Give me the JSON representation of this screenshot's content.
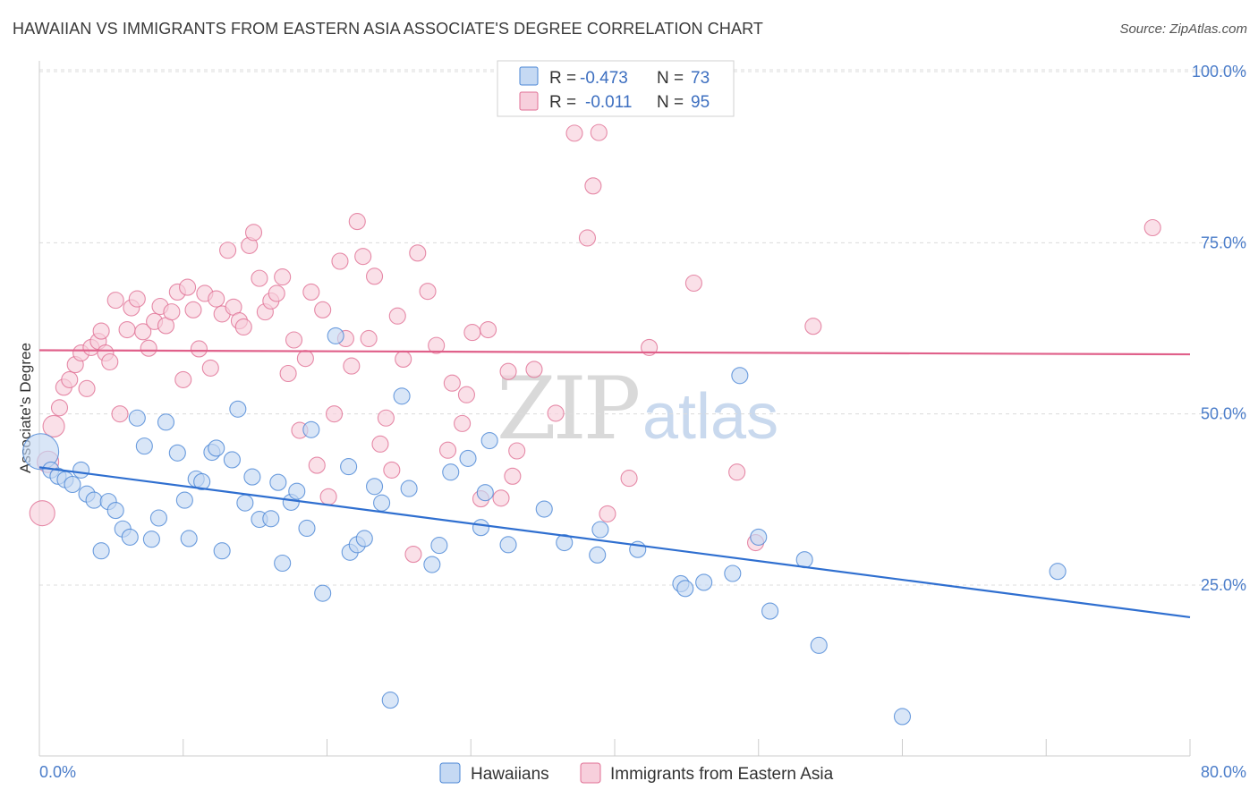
{
  "title": "HAWAIIAN VS IMMIGRANTS FROM EASTERN ASIA ASSOCIATE'S DEGREE CORRELATION CHART",
  "source": "Source: ZipAtlas.com",
  "watermark": {
    "zip": "ZIP",
    "atlas": "atlas"
  },
  "colors": {
    "blue": "#4a86d6",
    "blue_fill": "#c5d9f3",
    "pink": "#e06f94",
    "pink_fill": "#f7cfdc",
    "blue_line": "#2f6fd0",
    "pink_line": "#e0608a",
    "grid": "#dcdcdc",
    "tick_text": "#4a7cc9"
  },
  "legend": {
    "rows": [
      {
        "r_label": "R =",
        "r_value": "-0.473",
        "n_label": "N =",
        "n_value": "73"
      },
      {
        "r_label": "R =",
        "r_value": "-0.011",
        "n_label": "N =",
        "n_value": "95"
      }
    ]
  },
  "bottom_legend": [
    "Hawaiians",
    "Immigrants from Eastern Asia"
  ],
  "chart_data": {
    "type": "scatter",
    "xlabel": "",
    "ylabel": "Associate's Degree",
    "xlim": [
      0,
      80
    ],
    "ylim": [
      0,
      105
    ],
    "x_tick_labels": [
      "0.0%",
      "80.0%"
    ],
    "y_ticks": [
      25,
      50,
      75,
      100
    ],
    "y_tick_labels": [
      "25.0%",
      "50.0%",
      "75.0%",
      "100.0%"
    ],
    "grid": true,
    "legend_position": "top-center",
    "series": [
      {
        "name": "Hawaiians",
        "color": "#4a86d6",
        "trend": {
          "x0": 0,
          "y0": 42.2,
          "x1": 80,
          "y1": 20.3
        },
        "points": [
          [
            0.1,
            44.5
          ],
          [
            0.8,
            41.8
          ],
          [
            1.3,
            40.9
          ],
          [
            1.8,
            40.4
          ],
          [
            2.3,
            39.7
          ],
          [
            2.9,
            41.8
          ],
          [
            3.3,
            38.3
          ],
          [
            3.8,
            37.4
          ],
          [
            4.3,
            30.0
          ],
          [
            4.8,
            37.2
          ],
          [
            5.3,
            35.9
          ],
          [
            5.8,
            33.2
          ],
          [
            6.3,
            32.0
          ],
          [
            6.8,
            49.4
          ],
          [
            7.3,
            45.3
          ],
          [
            7.8,
            31.7
          ],
          [
            8.3,
            34.8
          ],
          [
            8.8,
            48.8
          ],
          [
            9.6,
            44.3
          ],
          [
            10.1,
            37.4
          ],
          [
            10.4,
            31.8
          ],
          [
            10.9,
            40.5
          ],
          [
            11.3,
            40.1
          ],
          [
            12.0,
            44.4
          ],
          [
            12.3,
            45.0
          ],
          [
            12.7,
            30.0
          ],
          [
            13.4,
            43.3
          ],
          [
            13.8,
            50.7
          ],
          [
            14.3,
            37.0
          ],
          [
            14.8,
            40.8
          ],
          [
            15.3,
            34.6
          ],
          [
            16.1,
            34.7
          ],
          [
            16.6,
            40.0
          ],
          [
            16.9,
            28.2
          ],
          [
            17.5,
            37.1
          ],
          [
            17.9,
            38.7
          ],
          [
            18.6,
            33.3
          ],
          [
            18.9,
            47.7
          ],
          [
            19.7,
            23.8
          ],
          [
            20.6,
            61.4
          ],
          [
            21.5,
            42.3
          ],
          [
            21.6,
            29.8
          ],
          [
            22.1,
            30.9
          ],
          [
            22.6,
            31.8
          ],
          [
            23.3,
            39.4
          ],
          [
            23.8,
            37.0
          ],
          [
            24.4,
            8.2
          ],
          [
            25.2,
            52.6
          ],
          [
            25.7,
            39.1
          ],
          [
            27.3,
            28.0
          ],
          [
            27.8,
            30.8
          ],
          [
            28.6,
            41.5
          ],
          [
            29.8,
            43.5
          ],
          [
            30.7,
            33.4
          ],
          [
            31.0,
            38.5
          ],
          [
            31.3,
            46.1
          ],
          [
            32.6,
            30.9
          ],
          [
            35.1,
            36.1
          ],
          [
            36.5,
            31.2
          ],
          [
            38.8,
            29.4
          ],
          [
            39.0,
            33.1
          ],
          [
            41.6,
            30.2
          ],
          [
            44.6,
            25.2
          ],
          [
            44.9,
            24.5
          ],
          [
            46.2,
            25.4
          ],
          [
            48.2,
            26.7
          ],
          [
            48.7,
            55.6
          ],
          [
            50.0,
            32.0
          ],
          [
            50.8,
            21.2
          ],
          [
            53.2,
            28.7
          ],
          [
            54.2,
            16.2
          ],
          [
            60.0,
            5.8
          ],
          [
            70.8,
            27.0
          ]
        ]
      },
      {
        "name": "Immigrants from Eastern Asia",
        "color": "#e06f94",
        "trend": {
          "x0": 0,
          "y0": 59.3,
          "x1": 80,
          "y1": 58.7
        },
        "points": [
          [
            0.2,
            35.5
          ],
          [
            0.6,
            43.0
          ],
          [
            1.0,
            48.2
          ],
          [
            1.4,
            50.9
          ],
          [
            1.7,
            53.9
          ],
          [
            2.1,
            55.0
          ],
          [
            2.5,
            57.2
          ],
          [
            2.9,
            58.9
          ],
          [
            3.3,
            53.7
          ],
          [
            3.6,
            59.7
          ],
          [
            4.1,
            60.6
          ],
          [
            4.3,
            62.1
          ],
          [
            4.6,
            58.9
          ],
          [
            4.9,
            57.6
          ],
          [
            5.3,
            66.6
          ],
          [
            5.6,
            50.0
          ],
          [
            6.1,
            62.3
          ],
          [
            6.4,
            65.5
          ],
          [
            6.8,
            66.8
          ],
          [
            7.2,
            62.0
          ],
          [
            7.6,
            59.6
          ],
          [
            8.0,
            63.5
          ],
          [
            8.4,
            65.7
          ],
          [
            8.8,
            62.9
          ],
          [
            9.2,
            64.9
          ],
          [
            9.6,
            67.8
          ],
          [
            10.0,
            55.0
          ],
          [
            10.3,
            68.5
          ],
          [
            10.7,
            65.2
          ],
          [
            11.1,
            59.5
          ],
          [
            11.5,
            67.6
          ],
          [
            11.9,
            56.7
          ],
          [
            12.3,
            66.8
          ],
          [
            12.7,
            64.6
          ],
          [
            13.1,
            73.9
          ],
          [
            13.5,
            65.6
          ],
          [
            13.9,
            63.6
          ],
          [
            14.2,
            62.7
          ],
          [
            14.6,
            74.6
          ],
          [
            14.9,
            76.5
          ],
          [
            15.3,
            69.8
          ],
          [
            15.7,
            64.9
          ],
          [
            16.1,
            66.5
          ],
          [
            16.5,
            67.6
          ],
          [
            16.9,
            70.0
          ],
          [
            17.3,
            55.9
          ],
          [
            17.7,
            60.8
          ],
          [
            18.1,
            47.6
          ],
          [
            18.5,
            58.1
          ],
          [
            18.9,
            67.8
          ],
          [
            19.3,
            42.5
          ],
          [
            19.7,
            65.2
          ],
          [
            20.1,
            37.9
          ],
          [
            20.5,
            50.0
          ],
          [
            20.9,
            72.3
          ],
          [
            21.3,
            61.0
          ],
          [
            21.7,
            57.0
          ],
          [
            22.1,
            78.1
          ],
          [
            22.5,
            73.0
          ],
          [
            22.9,
            61.0
          ],
          [
            23.3,
            70.1
          ],
          [
            23.7,
            45.6
          ],
          [
            24.1,
            49.4
          ],
          [
            24.5,
            41.8
          ],
          [
            24.9,
            64.3
          ],
          [
            25.3,
            58.0
          ],
          [
            26.0,
            29.5
          ],
          [
            26.3,
            73.5
          ],
          [
            27.0,
            67.9
          ],
          [
            27.6,
            60.0
          ],
          [
            28.4,
            44.7
          ],
          [
            28.7,
            54.5
          ],
          [
            29.4,
            48.6
          ],
          [
            29.7,
            52.8
          ],
          [
            30.1,
            61.9
          ],
          [
            30.7,
            37.6
          ],
          [
            31.2,
            62.3
          ],
          [
            32.1,
            37.7
          ],
          [
            32.6,
            56.2
          ],
          [
            32.9,
            40.9
          ],
          [
            33.2,
            44.6
          ],
          [
            34.4,
            56.5
          ],
          [
            35.9,
            50.1
          ],
          [
            37.2,
            91.0
          ],
          [
            38.1,
            75.7
          ],
          [
            38.5,
            83.3
          ],
          [
            38.9,
            91.1
          ],
          [
            39.5,
            35.4
          ],
          [
            41.0,
            40.6
          ],
          [
            42.4,
            59.7
          ],
          [
            45.5,
            69.1
          ],
          [
            48.5,
            41.5
          ],
          [
            49.8,
            31.2
          ],
          [
            53.8,
            62.8
          ],
          [
            77.4,
            77.2
          ]
        ]
      }
    ]
  }
}
